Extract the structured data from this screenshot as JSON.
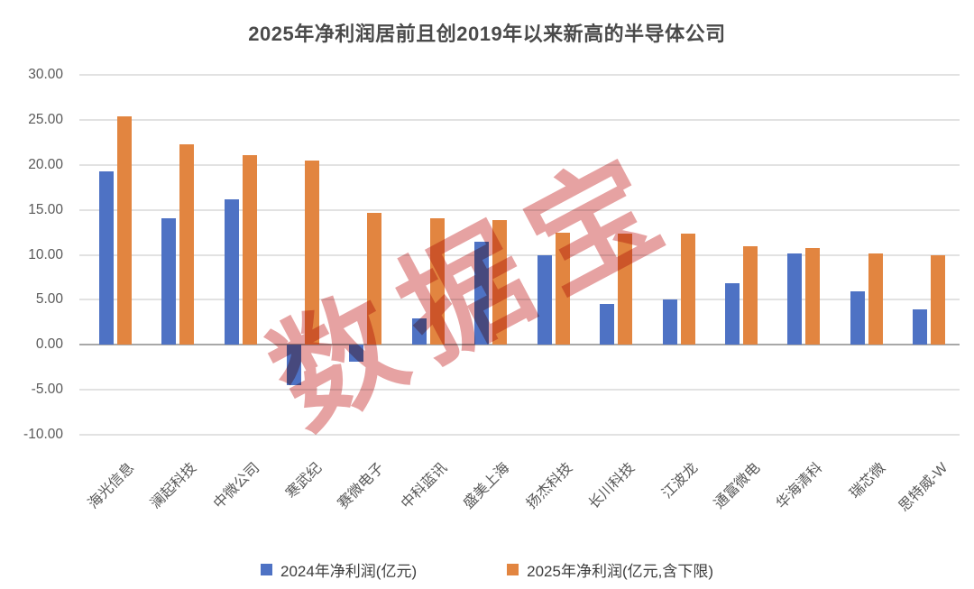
{
  "watermark": {
    "text": "数据宝",
    "color": "#e6a2a2"
  },
  "colors": {
    "series_2024": "#4e72c4",
    "series_2025": "#e28540",
    "gridline": "#e2e2e2",
    "zero_line": "#a8a8a8",
    "axis_text": "#595959",
    "title_text": "#4a4a4a"
  },
  "chart_data": {
    "type": "bar",
    "title": "2025年净利润居前且创2019年以来新高的半导体公司",
    "categories": [
      "海光信息",
      "澜起科技",
      "中微公司",
      "寒武纪",
      "赛微电子",
      "中科蓝讯",
      "盛美上海",
      "扬杰科技",
      "长川科技",
      "江波龙",
      "通富微电",
      "华海清科",
      "瑞芯微",
      "思特威-W"
    ],
    "series": [
      {
        "name": "2024年净利润(亿元)",
        "color": "#4e72c4",
        "values": [
          19.3,
          14.1,
          16.2,
          -4.5,
          -1.9,
          2.9,
          11.5,
          10.0,
          4.5,
          5.0,
          6.8,
          10.2,
          5.9,
          3.9
        ]
      },
      {
        "name": "2025年净利润(亿元,含下限)",
        "color": "#e28540",
        "values": [
          25.4,
          22.3,
          21.1,
          20.5,
          14.7,
          14.1,
          13.9,
          12.5,
          12.4,
          12.4,
          11.0,
          10.8,
          10.2,
          9.9
        ]
      }
    ],
    "xlabel": "",
    "ylabel": "",
    "ylim": [
      -10,
      30
    ],
    "ytick_values": [
      30,
      25,
      20,
      15,
      10,
      5,
      0,
      -5,
      -10
    ],
    "ytick_labels": [
      "30.00",
      "25.00",
      "20.00",
      "15.00",
      "10.00",
      "5.00",
      "0.00",
      "-5.00",
      "-10.00"
    ],
    "grid": true,
    "legend_position": "bottom"
  }
}
